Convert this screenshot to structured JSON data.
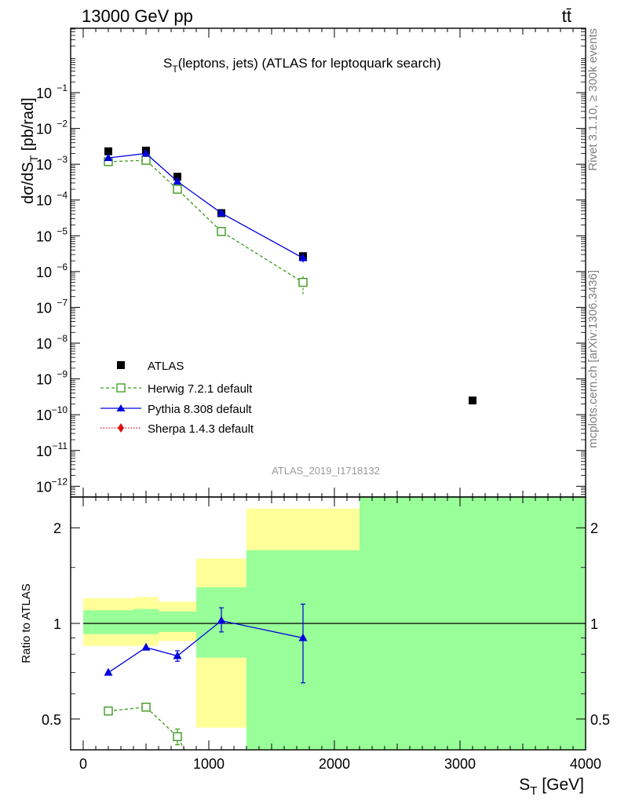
{
  "header": {
    "energy_label": "13000 GeV pp",
    "process_label": "tt̄"
  },
  "side_labels": {
    "rivet": "Rivet 3.1.10, ≥ 300k events",
    "mcplots": "mcplots.cern.ch [arXiv:1306.3436]"
  },
  "chart_data": [
    {
      "type": "scatter",
      "panel": "main",
      "title": "S_T(leptons, jets) (ATLAS for leptoquark search)",
      "title_main": "S",
      "title_sub": "T",
      "title_rest": "(leptons, jets) (ATLAS for leptoquark search)",
      "ylabel": "dσ/dS_T [pb/rad]",
      "ylabel_main": "dσ/dS",
      "ylabel_sub": "T",
      "ylabel_rest": " [pb/rad]",
      "yscale": "log",
      "ylim_exp": [
        -12.3,
        0.8
      ],
      "xlim": [
        -100,
        4000
      ],
      "y_ticks": [
        {
          "exp": -12,
          "label_base": "10",
          "label_exp": "−12"
        },
        {
          "exp": -11,
          "label_base": "10",
          "label_exp": "−11"
        },
        {
          "exp": -10,
          "label_base": "10",
          "label_exp": "−10"
        },
        {
          "exp": -9,
          "label_base": "10",
          "label_exp": "−9"
        },
        {
          "exp": -8,
          "label_base": "10",
          "label_exp": "−8"
        },
        {
          "exp": -7,
          "label_base": "10",
          "label_exp": "−7"
        },
        {
          "exp": -6,
          "label_base": "10",
          "label_exp": "−6"
        },
        {
          "exp": -5,
          "label_base": "10",
          "label_exp": "−5"
        },
        {
          "exp": -4,
          "label_base": "10",
          "label_exp": "−4"
        },
        {
          "exp": -3,
          "label_base": "10",
          "label_exp": "−3"
        },
        {
          "exp": -2,
          "label_base": "10",
          "label_exp": "−2"
        },
        {
          "exp": -1,
          "label_base": "10",
          "label_exp": "−1"
        }
      ],
      "series": [
        {
          "name": "ATLAS",
          "color": "#000000",
          "marker": "square-filled",
          "line": "none",
          "x": [
            200,
            500,
            750,
            1100,
            1750,
            3100
          ],
          "y": [
            0.0023,
            0.0024,
            0.00045,
            4.3e-05,
            2.7e-06,
            2.5e-10
          ]
        },
        {
          "name": "Herwig 7.2.1 default",
          "color": "#3a9a1a",
          "marker": "square-open",
          "line": "dashed",
          "x": [
            200,
            500,
            750,
            1100,
            1750
          ],
          "y": [
            0.00118,
            0.00129,
            0.0002,
            1.32e-05,
            5e-07
          ],
          "err_lo": [
            0,
            0,
            0,
            0,
            2.7e-07
          ],
          "err_hi": [
            0,
            0,
            0,
            0,
            2.5e-07
          ]
        },
        {
          "name": "Pythia 8.308 default",
          "color": "#0000dd",
          "marker": "triangle-filled",
          "line": "solid",
          "x": [
            200,
            500,
            750,
            1100,
            1750
          ],
          "y": [
            0.0015,
            0.002,
            0.00033,
            4.3e-05,
            2.4e-06
          ],
          "err_lo": [
            0,
            0,
            0,
            0,
            6e-07
          ],
          "err_hi": [
            0,
            0,
            0,
            0,
            6e-07
          ]
        },
        {
          "name": "Sherpa 1.4.3 default",
          "color": "#e01010",
          "marker": "diamond-filled",
          "line": "dotted",
          "x": [],
          "y": []
        }
      ],
      "annotation": "ATLAS_2019_I1718132"
    },
    {
      "type": "scatter",
      "panel": "ratio",
      "ylabel": "Ratio to ATLAS",
      "xlabel": "S_T [GeV]",
      "xlabel_main": "S",
      "xlabel_sub": "T",
      "xlabel_rest": " [GeV]",
      "yscale": "log",
      "ylim": [
        0.4,
        2.5
      ],
      "xlim": [
        -100,
        4000
      ],
      "x_ticks": [
        0,
        1000,
        2000,
        3000,
        4000
      ],
      "x_tick_labels": [
        "0",
        "1000",
        "2000",
        "3000",
        "4000"
      ],
      "y_ticks": [
        0.5,
        1,
        2
      ],
      "y_tick_labels": [
        "0.5",
        "1",
        "2"
      ],
      "uncertainty_bands": [
        {
          "x0": 0,
          "x1": 400,
          "yellow": [
            0.85,
            1.2
          ],
          "green": [
            0.925,
            1.1
          ]
        },
        {
          "x0": 400,
          "x1": 600,
          "yellow": [
            0.85,
            1.21
          ],
          "green": [
            0.925,
            1.11
          ]
        },
        {
          "x0": 600,
          "x1": 900,
          "yellow": [
            0.88,
            1.17
          ],
          "green": [
            0.94,
            1.09
          ]
        },
        {
          "x0": 900,
          "x1": 1300,
          "yellow": [
            0.47,
            1.6
          ],
          "green": [
            0.78,
            1.3
          ]
        },
        {
          "x0": 1300,
          "x1": 2200,
          "yellow": [
            0.4,
            2.3
          ],
          "green": [
            0.4,
            1.7
          ]
        },
        {
          "x0": 2200,
          "x1": 4000,
          "yellow": [
            0.4,
            2.5
          ],
          "green": [
            0.4,
            2.5
          ]
        }
      ],
      "series": [
        {
          "name": "Herwig 7.2.1 default",
          "color": "#3a9a1a",
          "marker": "square-open",
          "line": "dashed",
          "x": [
            200,
            500,
            750
          ],
          "y": [
            0.53,
            0.545,
            0.44
          ],
          "err_lo": [
            0,
            0,
            0.025
          ],
          "err_hi": [
            0,
            0,
            0.025
          ],
          "extends_below": true
        },
        {
          "name": "Pythia 8.308 default",
          "color": "#0000dd",
          "marker": "triangle-filled",
          "line": "solid",
          "x": [
            200,
            500,
            750,
            1100,
            1750
          ],
          "y": [
            0.7,
            0.84,
            0.79,
            1.02,
            0.9
          ],
          "err_lo": [
            0,
            0,
            0.03,
            0.08,
            0.25
          ],
          "err_hi": [
            0,
            0,
            0.03,
            0.1,
            0.25
          ]
        }
      ]
    }
  ]
}
